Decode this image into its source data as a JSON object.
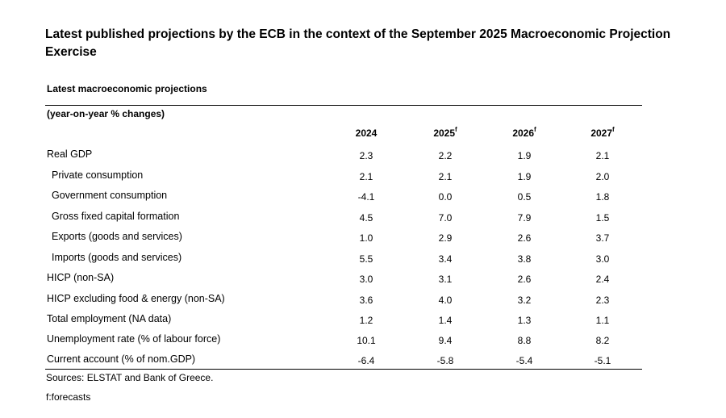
{
  "document": {
    "title": "Latest published projections by the ECB in the context of the September 2025 Macroeconomic Projection Exercise",
    "section_label": "Latest macroeconomic projections",
    "units_label": "(year-on-year % changes)",
    "columns": [
      {
        "year": "2024",
        "marker": ""
      },
      {
        "year": "2025",
        "marker": "f"
      },
      {
        "year": "2026",
        "marker": "f"
      },
      {
        "year": "2027",
        "marker": "f"
      }
    ],
    "rows": [
      {
        "label": "Real GDP",
        "indent": false,
        "values": [
          "2.3",
          "2.2",
          "1.9",
          "2.1"
        ]
      },
      {
        "label": "Private consumption",
        "indent": true,
        "values": [
          "2.1",
          "2.1",
          "1.9",
          "2.0"
        ]
      },
      {
        "label": "Government consumption",
        "indent": true,
        "values": [
          "-4.1",
          "0.0",
          "0.5",
          "1.8"
        ]
      },
      {
        "label": "Gross fixed capital formation",
        "indent": true,
        "values": [
          "4.5",
          "7.0",
          "7.9",
          "1.5"
        ]
      },
      {
        "label": "Exports (goods and services)",
        "indent": true,
        "values": [
          "1.0",
          "2.9",
          "2.6",
          "3.7"
        ]
      },
      {
        "label": "Imports (goods and services)",
        "indent": true,
        "values": [
          "5.5",
          "3.4",
          "3.8",
          "3.0"
        ]
      },
      {
        "label": "HICP (non-SA)",
        "indent": false,
        "values": [
          "3.0",
          "3.1",
          "2.6",
          "2.4"
        ]
      },
      {
        "label": "HICP excluding food & energy (non-SA)",
        "indent": false,
        "values": [
          "3.6",
          "4.0",
          "3.2",
          "2.3"
        ]
      },
      {
        "label": "Total employment (NA data)",
        "indent": false,
        "values": [
          "1.2",
          "1.4",
          "1.3",
          "1.1"
        ]
      },
      {
        "label": "Unemployment rate (% of labour force)",
        "indent": false,
        "values": [
          "10.1",
          "9.4",
          "8.8",
          "8.2"
        ]
      },
      {
        "label": "Current account (% of nom.GDP)",
        "indent": false,
        "values": [
          "-6.4",
          "-5.8",
          "-5.4",
          "-5.1"
        ]
      }
    ],
    "sources": "Sources: ELSTAT and Bank of Greece.",
    "forecast_note": "f:forecasts"
  }
}
